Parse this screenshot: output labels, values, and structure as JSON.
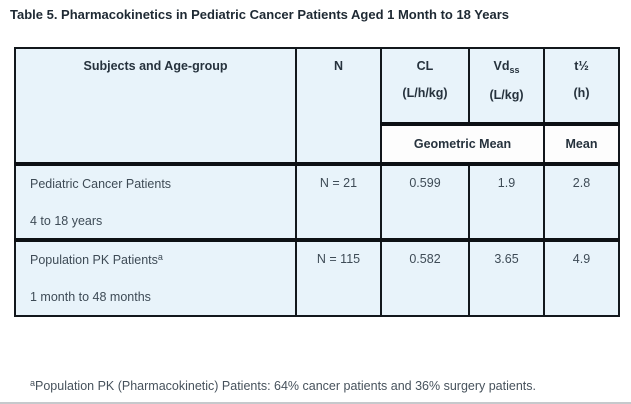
{
  "title": "Table 5. Pharmacokinetics in Pediatric Cancer Patients Aged 1 Month to 18 Years",
  "table": {
    "header": {
      "col_subjects": "Subjects and Age-group",
      "col_n": "N",
      "col_cl": {
        "name": "CL",
        "unit": "(L/h/kg)"
      },
      "col_vdss": {
        "name": "Vd",
        "subscript": "ss",
        "unit": "(L/kg)"
      },
      "col_thalf": {
        "name": "t½",
        "unit": "(h)"
      },
      "stat_geometric_mean": "Geometric Mean",
      "stat_mean": "Mean"
    },
    "rows": [
      {
        "name": "Pediatric Cancer Patients",
        "sup": "",
        "age": "4 to 18 years",
        "n": "N = 21",
        "cl": "0.599",
        "vdss": "1.9",
        "thalf": "2.8"
      },
      {
        "name": "Population PK Patients",
        "sup": "a",
        "age": "1 month to 48 months",
        "n": "N = 115",
        "cl": "0.582",
        "vdss": "3.65",
        "thalf": "4.9"
      }
    ]
  },
  "footnote": {
    "marker": "a",
    "text": "Population PK (Pharmacokinetic) Patients: 64% cancer patients and 36% surgery patients."
  },
  "colors": {
    "cell_background": "#e8f3fa",
    "stat_cell_background": "#fdfdfd",
    "border": "#12171c",
    "title_text": "#1e2933",
    "body_text": "#3e4b56",
    "footnote_text": "#47525c"
  }
}
